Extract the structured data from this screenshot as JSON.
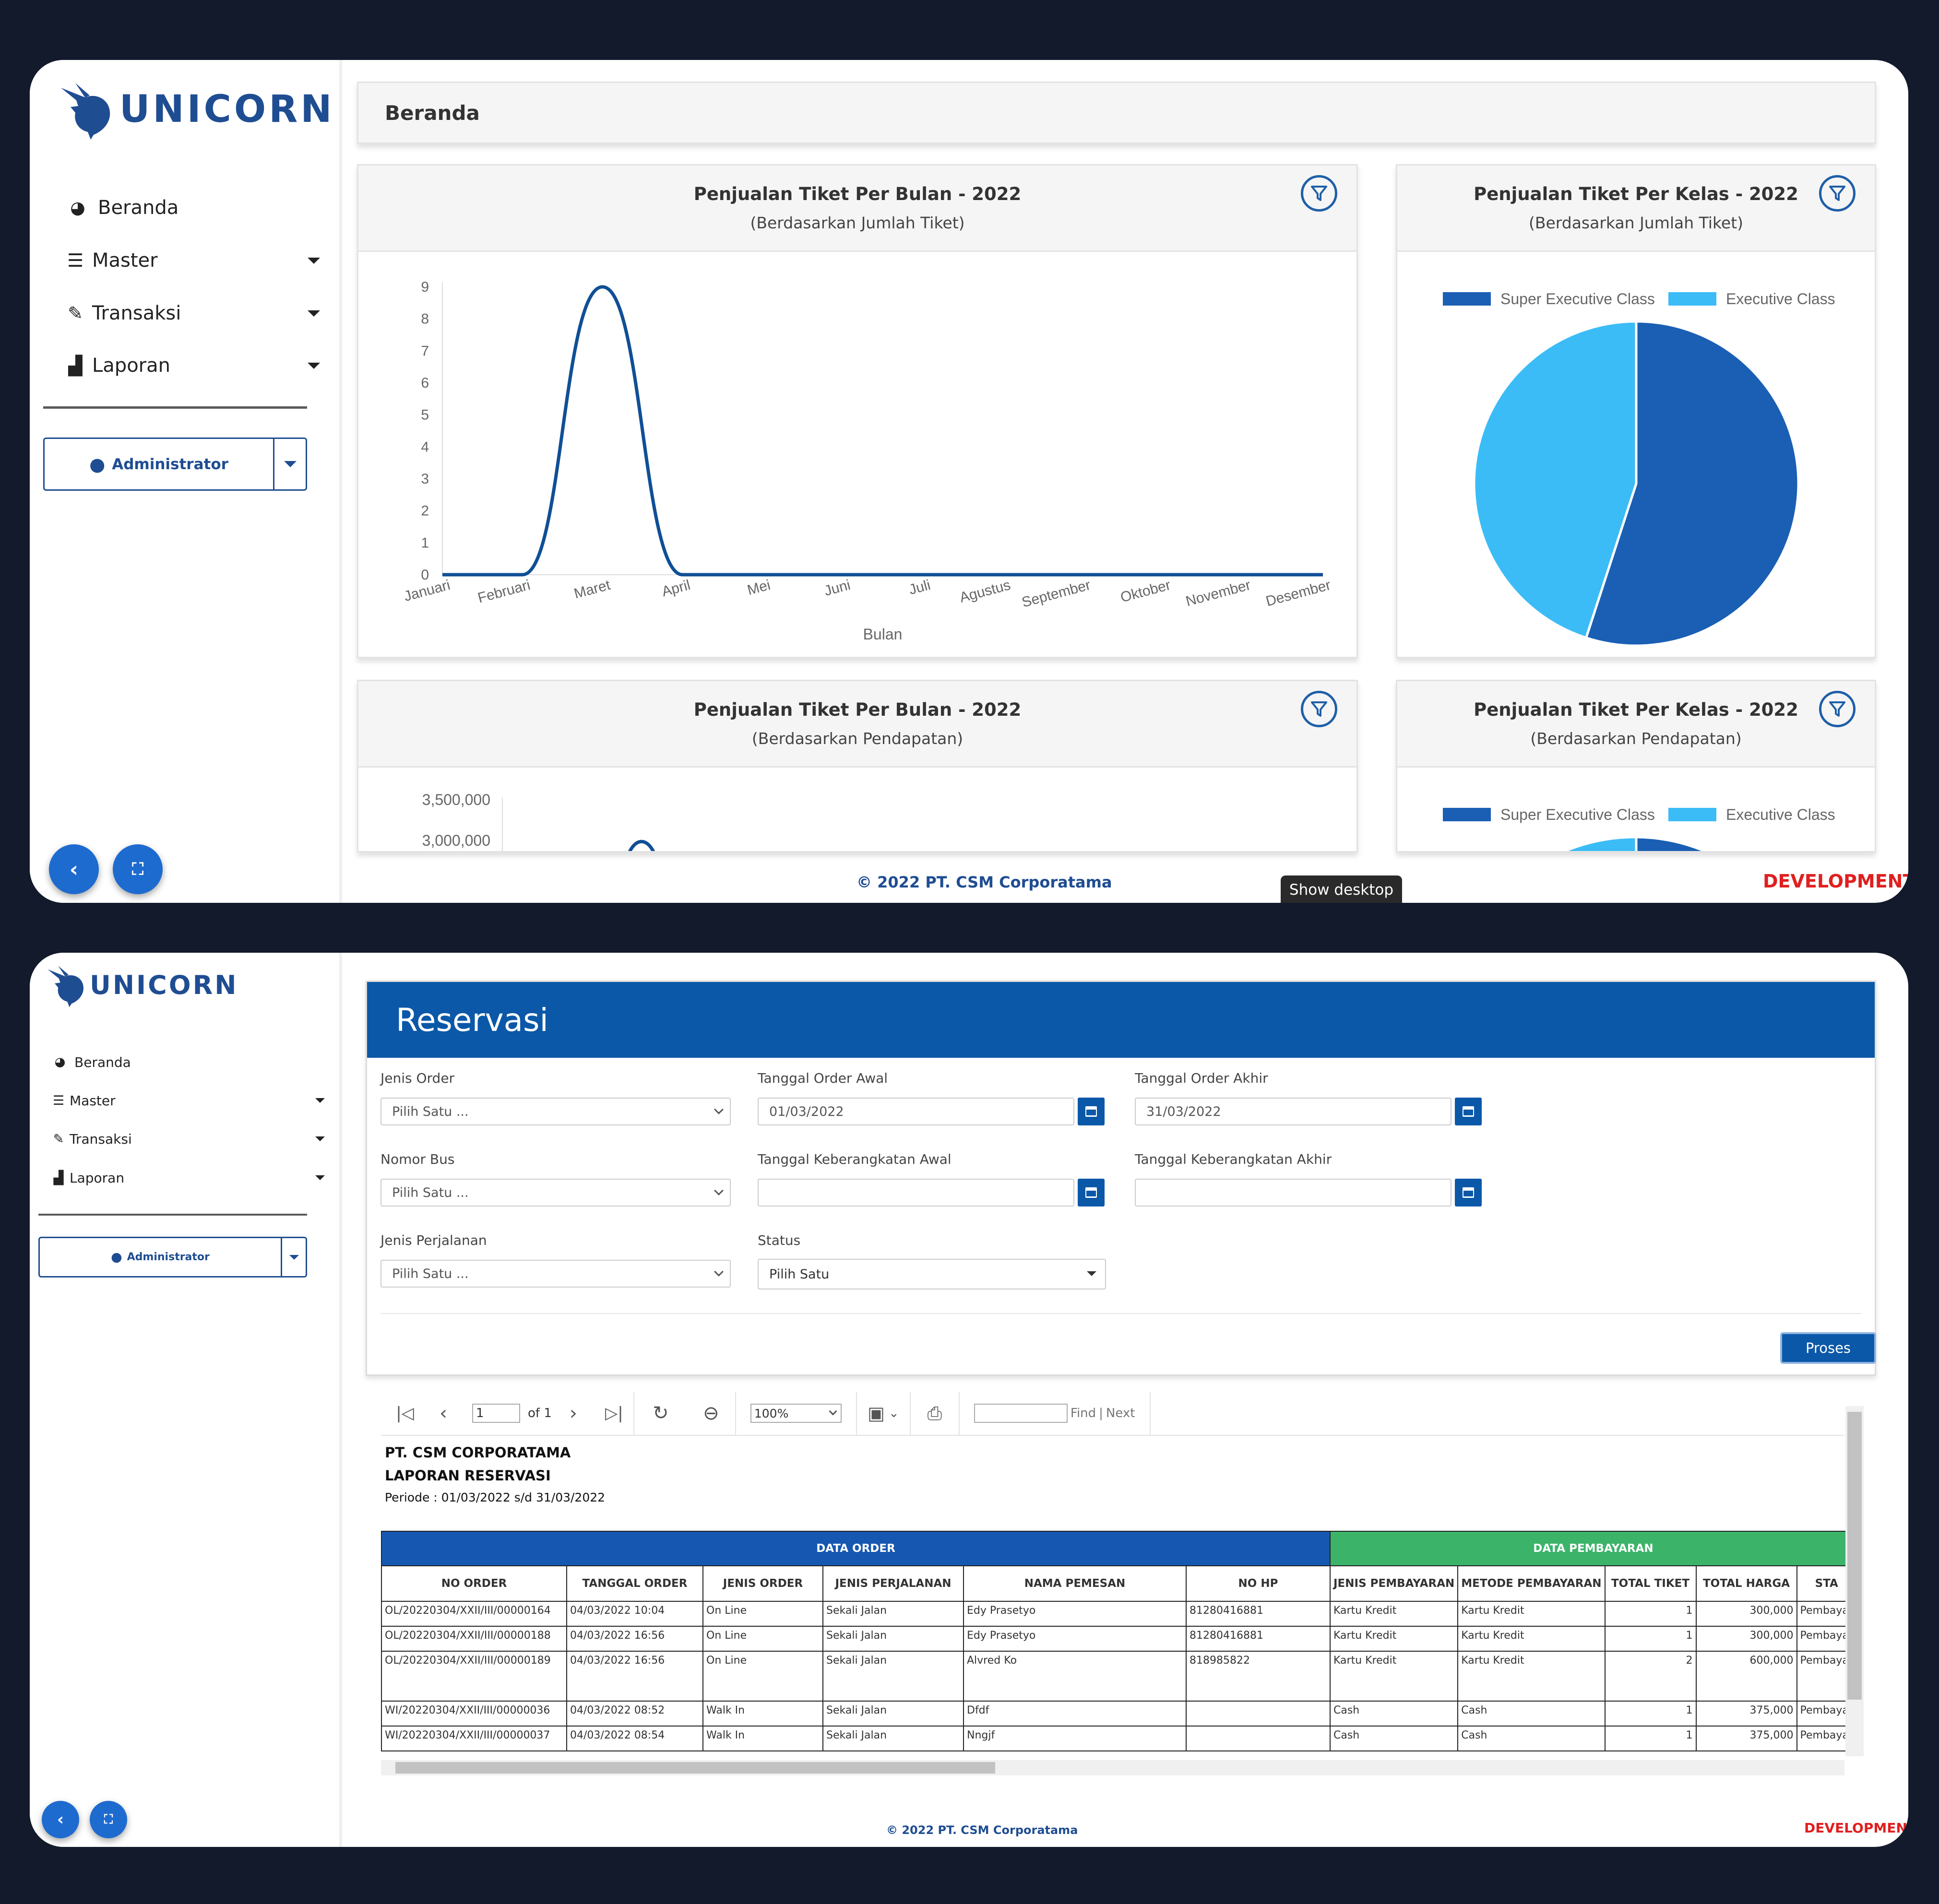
{
  "app": {
    "logo_text": "UNICORN",
    "footer_copyright": "© 2022 PT. CSM Corporatama",
    "env_badge": "DEVELOPMENT",
    "taskbar_tooltip": "Show desktop",
    "colors": {
      "brand": "#1f4d92",
      "accent": "#0b58a8",
      "dev_badge": "#e01f1f",
      "super_exec": "#1a5fb4",
      "exec": "#3bbcf6"
    }
  },
  "sidebar": {
    "items": [
      {
        "label": "Beranda",
        "icon": "dashboard-icon",
        "has_caret": false
      },
      {
        "label": "Master",
        "icon": "server-icon",
        "has_caret": true
      },
      {
        "label": "Transaksi",
        "icon": "edit-icon",
        "has_caret": true
      },
      {
        "label": "Laporan",
        "icon": "area-chart-icon",
        "has_caret": true
      }
    ],
    "user_label": "Administrator"
  },
  "dashboard": {
    "page_title": "Beranda",
    "cards": [
      {
        "title": "Penjualan Tiket Per Bulan - 2022",
        "subtitle": "(Berdasarkan Jumlah Tiket)"
      },
      {
        "title": "Penjualan Tiket Per Kelas - 2022",
        "subtitle": "(Berdasarkan Jumlah Tiket)"
      },
      {
        "title": "Penjualan Tiket Per Bulan - 2022",
        "subtitle": "(Berdasarkan Pendapatan)"
      },
      {
        "title": "Penjualan Tiket Per Kelas - 2022",
        "subtitle": "(Berdasarkan Pendapatan)"
      }
    ]
  },
  "chart_data": [
    {
      "type": "line",
      "categories": [
        "Januari",
        "Februari",
        "Maret",
        "April",
        "Mei",
        "Juni",
        "Juli",
        "Agustus",
        "September",
        "Oktober",
        "November",
        "Desember"
      ],
      "series": [
        {
          "values": [
            0,
            0,
            9,
            0,
            0,
            0,
            0,
            0,
            0,
            0,
            0,
            0
          ]
        }
      ],
      "xlabel": "Bulan",
      "ylim": [
        0,
        9
      ],
      "yticks": [
        "0",
        "1",
        "2",
        "3",
        "4",
        "5",
        "6",
        "7",
        "8",
        "9"
      ],
      "color": "#0f4f96"
    },
    {
      "type": "pie",
      "legend": [
        "Super Executive Class",
        "Executive Class"
      ],
      "values": [
        55,
        45
      ],
      "colors": [
        "#1a5fb4",
        "#3bbcf6"
      ],
      "legend_position": "top"
    },
    {
      "type": "line",
      "yticks_visible": [
        "3,500,000",
        "3,000,000"
      ],
      "note": "partially visible"
    },
    {
      "type": "pie",
      "legend": [
        "Super Executive Class",
        "Executive Class"
      ],
      "colors": [
        "#1a5fb4",
        "#3bbcf6"
      ],
      "legend_position": "top"
    }
  ],
  "reservasi": {
    "title": "Reservasi",
    "fields": {
      "jenis_order": {
        "label": "Jenis Order",
        "value": "Pilih Satu ..."
      },
      "tgl_order_awal": {
        "label": "Tanggal Order Awal",
        "value": "01/03/2022"
      },
      "tgl_order_akhir": {
        "label": "Tanggal Order Akhir",
        "value": "31/03/2022"
      },
      "nomor_bus": {
        "label": "Nomor Bus",
        "value": "Pilih Satu ..."
      },
      "tgl_berangkat_awal": {
        "label": "Tanggal Keberangkatan Awal",
        "value": ""
      },
      "tgl_berangkat_akhir": {
        "label": "Tanggal Keberangkatan Akhir",
        "value": ""
      },
      "jenis_perjalanan": {
        "label": "Jenis Perjalanan",
        "value": "Pilih Satu ..."
      },
      "status": {
        "label": "Status",
        "value": "Pilih Satu"
      }
    },
    "proses_label": "Proses",
    "viewer": {
      "page_value": "1",
      "page_of": "of 1",
      "zoom": "100%",
      "find_label": "Find",
      "find_sep": "|",
      "next_label": "Next"
    },
    "report": {
      "company": "PT. CSM CORPORATAMA",
      "title": "LAPORAN RESERVASI",
      "period": "Periode : 01/03/2022 s/d 31/03/2022",
      "group_order": "DATA ORDER",
      "group_payment": "DATA PEMBAYARAN",
      "columns": [
        "NO ORDER",
        "TANGGAL ORDER",
        "JENIS ORDER",
        "JENIS PERJALANAN",
        "NAMA PEMESAN",
        "NO HP",
        "JENIS PEMBAYARAN",
        "METODE PEMBAYARAN",
        "TOTAL TIKET",
        "TOTAL HARGA",
        "STA"
      ],
      "rows": [
        [
          "OL/20220304/XXII/III/00000164",
          "04/03/2022 10:04",
          "On Line",
          "Sekali Jalan",
          "Edy Prasetyo",
          "81280416881",
          "Kartu Kredit",
          "Kartu Kredit",
          "1",
          "300,000",
          "Pembayar"
        ],
        [
          "OL/20220304/XXII/III/00000188",
          "04/03/2022 16:56",
          "On Line",
          "Sekali Jalan",
          "Edy Prasetyo",
          "81280416881",
          "Kartu Kredit",
          "Kartu Kredit",
          "1",
          "300,000",
          "Pembayar"
        ],
        [
          "OL/20220304/XXII/III/00000189",
          "04/03/2022 16:56",
          "On Line",
          "Sekali Jalan",
          "Alvred Ko",
          "818985822",
          "Kartu Kredit",
          "Kartu Kredit",
          "2",
          "600,000",
          "Pembayar"
        ],
        [
          "WI/20220304/XXII/III/00000036",
          "04/03/2022 08:52",
          "Walk In",
          "Sekali Jalan",
          "Dfdf",
          "",
          "Cash",
          "Cash",
          "1",
          "375,000",
          "Pembayar"
        ],
        [
          "WI/20220304/XXII/III/00000037",
          "04/03/2022 08:54",
          "Walk In",
          "Sekali Jalan",
          "Nngjf",
          "",
          "Cash",
          "Cash",
          "1",
          "375,000",
          "Pembayar"
        ]
      ]
    }
  }
}
